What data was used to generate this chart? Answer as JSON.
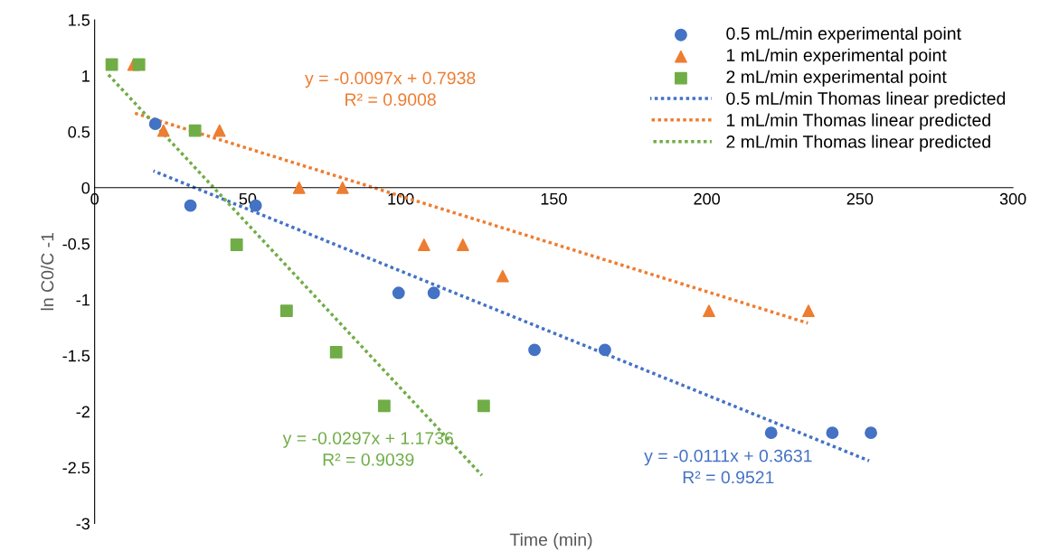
{
  "chart_data": {
    "type": "scatter",
    "xlabel": "Time (min)",
    "ylabel": "ln C0/C -1",
    "xlim": [
      0,
      300
    ],
    "xticks": [
      0,
      50,
      100,
      150,
      200,
      250,
      300
    ],
    "ylim": [
      -3,
      1.5
    ],
    "yticks": [
      -3,
      -2.5,
      -2,
      -1.5,
      -1,
      -0.5,
      0,
      0.5,
      1,
      1.5
    ],
    "grid": false,
    "legend": "top right",
    "series": [
      {
        "name": "0.5 mL/min experimental point",
        "color": "#4472c4",
        "marker": "circle",
        "x": [
          19.8,
          31.3,
          52.6,
          99.3,
          110.8,
          143.7,
          166.7,
          221,
          241,
          253.6
        ],
        "values": [
          0.57,
          -0.16,
          -0.16,
          -0.94,
          -0.94,
          -1.45,
          -1.45,
          -2.19,
          -2.19,
          -2.19
        ]
      },
      {
        "name": "1 mL/min experimental point",
        "color": "#ed7d31",
        "marker": "triangle",
        "x": [
          12.7,
          22.5,
          40.8,
          66.8,
          81,
          107.6,
          120.3,
          133.3,
          200.7,
          233.2
        ],
        "values": [
          1.1,
          0.51,
          0.51,
          0,
          0,
          -0.51,
          -0.51,
          -0.79,
          -1.1,
          -1.1
        ]
      },
      {
        "name": "2 mL/min experimental point",
        "color": "#70ad47",
        "marker": "square",
        "x": [
          5.6,
          14.5,
          32.8,
          46.4,
          62.7,
          78.9,
          94.6,
          127.1
        ],
        "values": [
          1.1,
          1.1,
          0.51,
          -0.51,
          -1.1,
          -1.47,
          -1.95,
          -1.95
        ]
      },
      {
        "name": "0.5 mL/min Thomas linear predicted",
        "color": "#4472c4",
        "type": "line",
        "marker": "none",
        "line_style": "dotted",
        "x": [
          19.2,
          253
        ],
        "values": [
          0.15,
          -2.44
        ]
      },
      {
        "name": "1 mL/min Thomas linear predicted",
        "color": "#ed7d31",
        "type": "line",
        "marker": "none",
        "line_style": "dotted",
        "x": [
          12.7,
          233
        ],
        "values": [
          0.67,
          -1.21
        ]
      },
      {
        "name": "2 mL/min Thomas linear predicted",
        "color": "#70ad47",
        "type": "line",
        "marker": "none",
        "line_style": "dotted",
        "x": [
          3.8,
          126.5
        ],
        "values": [
          1.03,
          -2.57
        ]
      }
    ],
    "annotations": [
      "y = -0.0111x + 0.3631\nR² = 0.9521",
      "y = -0.0097x + 0.7938\nR² = 0.9008",
      "y = -0.0297x + 1.1736\nR² = 0.9039"
    ]
  }
}
